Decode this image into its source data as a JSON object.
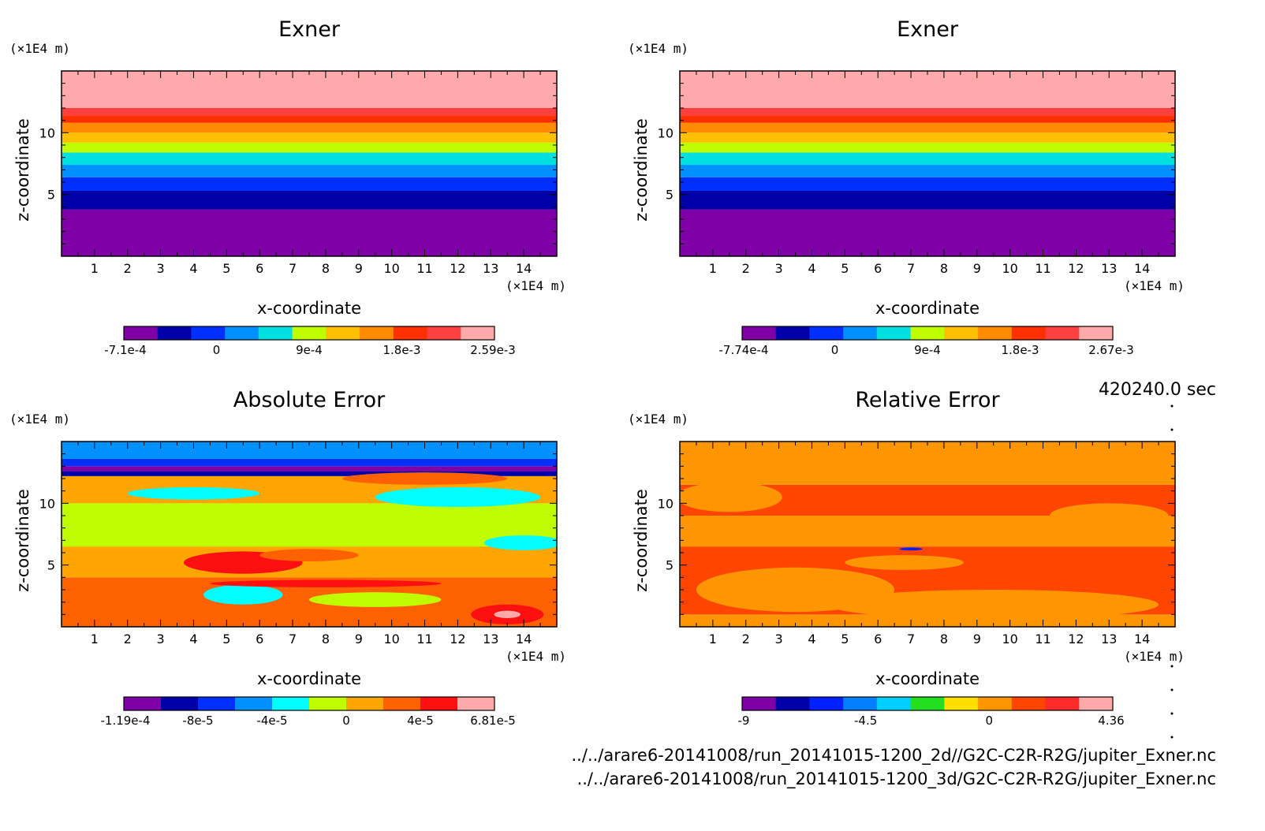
{
  "timestamp": "420240.0 sec",
  "paths": [
    "../../arare6-20141008/run_20141015-1200_2d//G2C-C2R-R2G/jupiter_Exner.nc",
    "../../arare6-20141008/run_20141015-1200_3d/G2C-C2R-R2G/jupiter_Exner.nc"
  ],
  "chart_data": [
    {
      "id": "exner-2d",
      "type": "heatmap",
      "title": "Exner",
      "xlabel": "x-coordinate",
      "ylabel": "z-coordinate",
      "x_unit": "(×1E4 m)",
      "z_unit": "(×1E4 m)",
      "xlim": [
        0,
        15
      ],
      "zlim": [
        0,
        15
      ],
      "x_ticks": [
        "1",
        "2",
        "3",
        "4",
        "5",
        "6",
        "7",
        "8",
        "9",
        "10",
        "11",
        "12",
        "13",
        "14"
      ],
      "z_ticks": [
        "5",
        "10"
      ],
      "colorbar_labels": [
        "-7.1e-4",
        "0",
        "9e-4",
        "1.8e-3",
        "2.59e-3"
      ],
      "colors": [
        "#8000a8",
        "#0000a8",
        "#0030ff",
        "#0090ff",
        "#00e0e0",
        "#c0ff00",
        "#ffc000",
        "#ff8c00",
        "#ff3000",
        "#ff4040",
        "#ffaaaa"
      ],
      "bands": [
        {
          "z_top": 3.8,
          "color": "#8000a8"
        },
        {
          "z_top": 5.3,
          "color": "#0000a8"
        },
        {
          "z_top": 6.4,
          "color": "#0030ff"
        },
        {
          "z_top": 7.4,
          "color": "#0090ff"
        },
        {
          "z_top": 8.4,
          "color": "#00e0e0"
        },
        {
          "z_top": 9.2,
          "color": "#c0ff00"
        },
        {
          "z_top": 10.0,
          "color": "#ffc000"
        },
        {
          "z_top": 10.8,
          "color": "#ff8c00"
        },
        {
          "z_top": 11.4,
          "color": "#ff3000"
        },
        {
          "z_top": 12.0,
          "color": "#ff4040"
        },
        {
          "z_top": 15.0,
          "color": "#ffaaaa"
        }
      ]
    },
    {
      "id": "exner-3d",
      "type": "heatmap",
      "title": "Exner",
      "xlabel": "x-coordinate",
      "ylabel": "z-coordinate",
      "x_unit": "(×1E4 m)",
      "z_unit": "(×1E4 m)",
      "xlim": [
        0,
        15
      ],
      "zlim": [
        0,
        15
      ],
      "x_ticks": [
        "1",
        "2",
        "3",
        "4",
        "5",
        "6",
        "7",
        "8",
        "9",
        "10",
        "11",
        "12",
        "13",
        "14"
      ],
      "z_ticks": [
        "5",
        "10"
      ],
      "colorbar_labels": [
        "-7.74e-4",
        "0",
        "9e-4",
        "1.8e-3",
        "2.67e-3"
      ],
      "colors": [
        "#8000a8",
        "#0000a8",
        "#0030ff",
        "#0090ff",
        "#00e0e0",
        "#c0ff00",
        "#ffc000",
        "#ff8c00",
        "#ff3000",
        "#ff4040",
        "#ffaaaa"
      ],
      "bands": [
        {
          "z_top": 3.8,
          "color": "#8000a8"
        },
        {
          "z_top": 5.3,
          "color": "#0000a8"
        },
        {
          "z_top": 6.4,
          "color": "#0030ff"
        },
        {
          "z_top": 7.4,
          "color": "#0090ff"
        },
        {
          "z_top": 8.4,
          "color": "#00e0e0"
        },
        {
          "z_top": 9.2,
          "color": "#c0ff00"
        },
        {
          "z_top": 10.0,
          "color": "#ffc000"
        },
        {
          "z_top": 10.8,
          "color": "#ff8c00"
        },
        {
          "z_top": 11.4,
          "color": "#ff3000"
        },
        {
          "z_top": 12.0,
          "color": "#ff4040"
        },
        {
          "z_top": 15.0,
          "color": "#ffaaaa"
        }
      ]
    },
    {
      "id": "absolute-error",
      "type": "heatmap",
      "title": "Absolute Error",
      "xlabel": "x-coordinate",
      "ylabel": "z-coordinate",
      "x_unit": "(×1E4 m)",
      "z_unit": "(×1E4 m)",
      "xlim": [
        0,
        15
      ],
      "zlim": [
        0,
        15
      ],
      "x_ticks": [
        "1",
        "2",
        "3",
        "4",
        "5",
        "6",
        "7",
        "8",
        "9",
        "10",
        "11",
        "12",
        "13",
        "14"
      ],
      "z_ticks": [
        "5",
        "10"
      ],
      "colorbar_labels": [
        "-1.19e-4",
        "-8e-5",
        "-4e-5",
        "0",
        "4e-5",
        "6.81e-5"
      ],
      "colors": [
        "#8000a8",
        "#0000a8",
        "#0030ff",
        "#0090ff",
        "#00ffff",
        "#c0ff00",
        "#ffa500",
        "#ff6000",
        "#ff1010",
        "#ffaaaa"
      ],
      "bands": [
        {
          "z_top": 4.0,
          "color": "#ff6000"
        },
        {
          "z_top": 6.5,
          "color": "#ffa500"
        },
        {
          "z_top": 10.0,
          "color": "#c0ff00"
        },
        {
          "z_top": 12.2,
          "color": "#ffa500"
        },
        {
          "z_top": 12.6,
          "color": "#0000a8"
        },
        {
          "z_top": 13.0,
          "color": "#8000a8"
        },
        {
          "z_top": 13.6,
          "color": "#0030ff"
        },
        {
          "z_top": 15.0,
          "color": "#0090ff"
        }
      ],
      "blobs": [
        {
          "x": 5.5,
          "z": 5.2,
          "rx": 1.8,
          "rz": 0.9,
          "color": "#ff1010"
        },
        {
          "x": 11.0,
          "z": 12.0,
          "rx": 2.5,
          "rz": 0.5,
          "color": "#ff6000"
        },
        {
          "x": 12.0,
          "z": 10.5,
          "rx": 2.5,
          "rz": 0.8,
          "color": "#00ffff"
        },
        {
          "x": 4.0,
          "z": 10.8,
          "rx": 2.0,
          "rz": 0.5,
          "color": "#00ffff"
        },
        {
          "x": 14.0,
          "z": 6.8,
          "rx": 1.2,
          "rz": 0.6,
          "color": "#00ffff"
        },
        {
          "x": 5.5,
          "z": 2.6,
          "rx": 1.2,
          "rz": 0.8,
          "color": "#00ffff"
        },
        {
          "x": 9.5,
          "z": 2.2,
          "rx": 2.0,
          "rz": 0.6,
          "color": "#c0ff00"
        },
        {
          "x": 13.5,
          "z": 1.0,
          "rx": 1.1,
          "rz": 0.8,
          "color": "#ff1010"
        },
        {
          "x": 13.5,
          "z": 1.0,
          "rx": 0.4,
          "rz": 0.3,
          "color": "#ffaaaa"
        },
        {
          "x": 8.0,
          "z": 3.5,
          "rx": 3.5,
          "rz": 0.3,
          "color": "#ff1010"
        },
        {
          "x": 7.5,
          "z": 5.8,
          "rx": 1.5,
          "rz": 0.5,
          "color": "#ff6000"
        }
      ]
    },
    {
      "id": "relative-error",
      "type": "heatmap",
      "title": "Relative Error",
      "xlabel": "x-coordinate",
      "ylabel": "z-coordinate",
      "x_unit": "(×1E4 m)",
      "z_unit": "(×1E4 m)",
      "xlim": [
        0,
        15
      ],
      "zlim": [
        0,
        15
      ],
      "x_ticks": [
        "1",
        "2",
        "3",
        "4",
        "5",
        "6",
        "7",
        "8",
        "9",
        "10",
        "11",
        "12",
        "13",
        "14"
      ],
      "z_ticks": [
        "5",
        "10"
      ],
      "colorbar_labels": [
        "-9",
        "-4.5",
        "0",
        "4.36"
      ],
      "colors": [
        "#8000a8",
        "#0000a8",
        "#0020ff",
        "#0080ff",
        "#00d0ff",
        "#20e020",
        "#ffe000",
        "#ff9500",
        "#ff4500",
        "#ff2a2a",
        "#ffaaaa"
      ],
      "bands": [
        {
          "z_top": 1.0,
          "color": "#ff9500"
        },
        {
          "z_top": 6.5,
          "color": "#ff4500"
        },
        {
          "z_top": 9.0,
          "color": "#ff9500"
        },
        {
          "z_top": 11.5,
          "color": "#ff4500"
        },
        {
          "z_top": 15.0,
          "color": "#ff9500"
        }
      ],
      "blobs": [
        {
          "x": 3.5,
          "z": 3.0,
          "rx": 3.0,
          "rz": 1.8,
          "color": "#ff9500"
        },
        {
          "x": 9.5,
          "z": 1.8,
          "rx": 5.0,
          "rz": 1.2,
          "color": "#ff9500"
        },
        {
          "x": 6.8,
          "z": 5.2,
          "rx": 1.8,
          "rz": 0.6,
          "color": "#ff9500"
        },
        {
          "x": 13.0,
          "z": 9.0,
          "rx": 1.8,
          "rz": 1.0,
          "color": "#ff9500"
        },
        {
          "x": 1.5,
          "z": 10.5,
          "rx": 1.6,
          "rz": 1.2,
          "color": "#ff9500"
        },
        {
          "x": 7.0,
          "z": 6.3,
          "rx": 0.35,
          "rz": 0.12,
          "color": "#0020ff"
        }
      ]
    }
  ]
}
